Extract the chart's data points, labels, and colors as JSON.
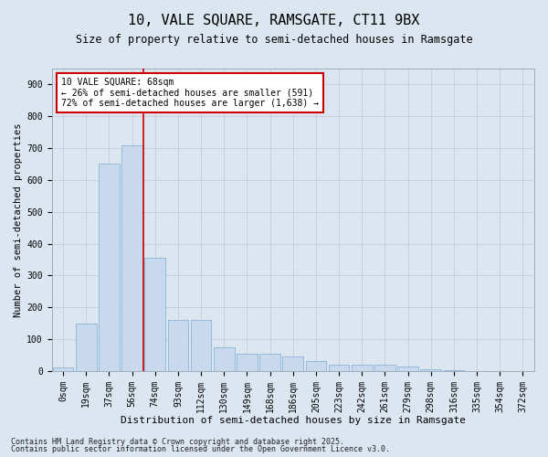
{
  "title": "10, VALE SQUARE, RAMSGATE, CT11 9BX",
  "subtitle": "Size of property relative to semi-detached houses in Ramsgate",
  "xlabel": "Distribution of semi-detached houses by size in Ramsgate",
  "ylabel": "Number of semi-detached properties",
  "categories": [
    "0sqm",
    "19sqm",
    "37sqm",
    "56sqm",
    "74sqm",
    "93sqm",
    "112sqm",
    "130sqm",
    "149sqm",
    "168sqm",
    "186sqm",
    "205sqm",
    "223sqm",
    "242sqm",
    "261sqm",
    "279sqm",
    "298sqm",
    "316sqm",
    "335sqm",
    "354sqm",
    "372sqm"
  ],
  "values": [
    10,
    150,
    650,
    710,
    355,
    160,
    160,
    75,
    55,
    55,
    45,
    30,
    20,
    20,
    20,
    15,
    5,
    2,
    1,
    0,
    0
  ],
  "bar_color": "#c8d9ee",
  "bar_edge_color": "#8ab4d4",
  "grid_color": "#c4cdd8",
  "bg_color": "#dce6f0",
  "vline_x": 3.5,
  "vline_color": "#cc0000",
  "annotation_text": "10 VALE SQUARE: 68sqm\n← 26% of semi-detached houses are smaller (591)\n72% of semi-detached houses are larger (1,638) →",
  "annotation_box_facecolor": "#ffffff",
  "annotation_box_edge": "#cc0000",
  "footer1": "Contains HM Land Registry data © Crown copyright and database right 2025.",
  "footer2": "Contains public sector information licensed under the Open Government Licence v3.0.",
  "ylim": [
    0,
    950
  ],
  "yticks": [
    0,
    100,
    200,
    300,
    400,
    500,
    600,
    700,
    800,
    900
  ],
  "title_fontsize": 11,
  "subtitle_fontsize": 8.5,
  "ylabel_fontsize": 7.5,
  "xlabel_fontsize": 8,
  "tick_fontsize": 7,
  "annotation_fontsize": 7,
  "footer_fontsize": 6
}
